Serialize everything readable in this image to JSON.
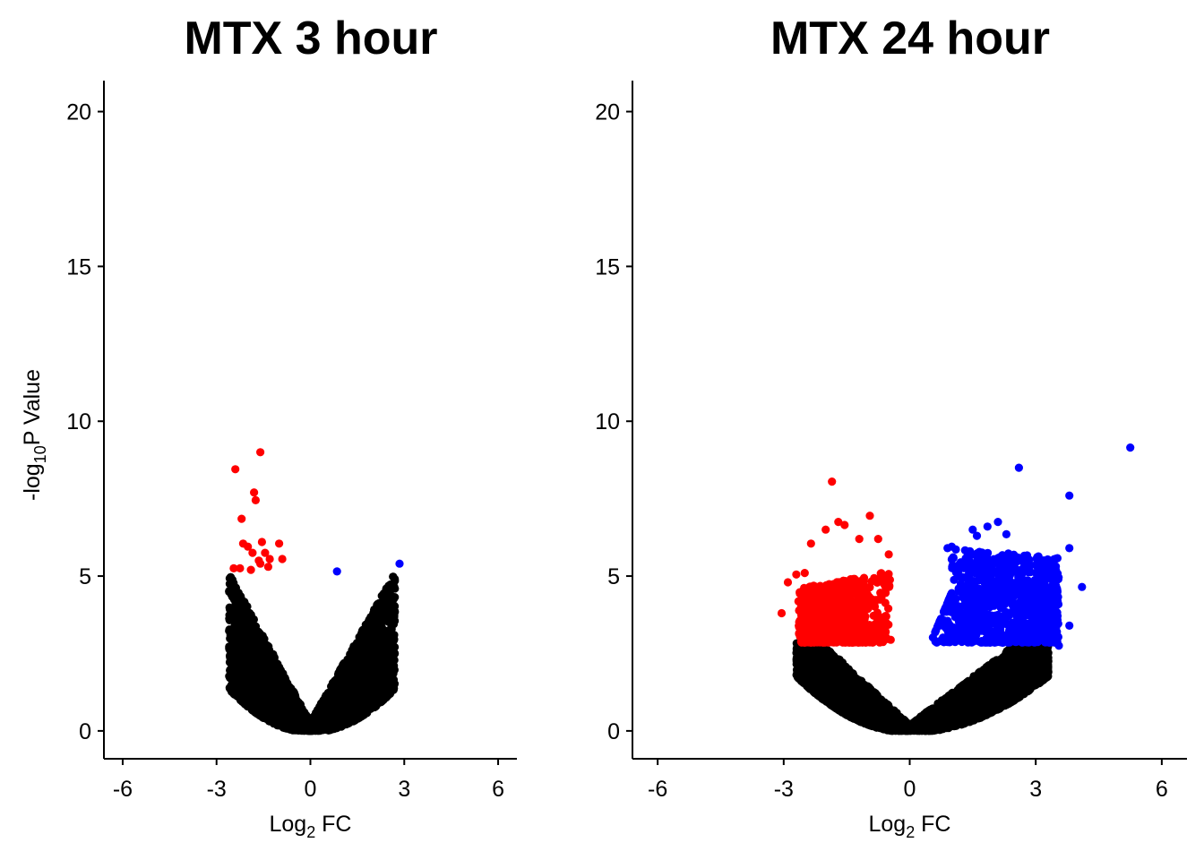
{
  "chart_data": [
    {
      "type": "scatter",
      "title": "MTX 3 hour",
      "xlabel": "Log2 FC",
      "xlabel_main": "Log",
      "xlabel_sub": "2",
      "xlabel_tail": " FC",
      "ylabel": "-log10P Value",
      "ylabel_head": "-log",
      "ylabel_sub": "10",
      "ylabel_tail": "P Value",
      "xlim": [
        -6.6,
        6.6
      ],
      "ylim": [
        -0.9,
        21
      ],
      "xticks": [
        -6,
        -3,
        0,
        3,
        6
      ],
      "yticks": [
        0,
        5,
        10,
        15,
        20
      ],
      "grid": false,
      "legend": "none",
      "colors": {
        "down": "#ff0000",
        "up": "#0000ff",
        "ns": "#000000"
      },
      "cloud": {
        "ns_threshold": 5.0,
        "min_x": -2.6,
        "max_x": 2.7,
        "n": 3200
      },
      "series": [
        {
          "group": "down",
          "points": [
            [
              -1.6,
              9.0
            ],
            [
              -2.4,
              8.45
            ],
            [
              -1.8,
              7.7
            ],
            [
              -1.75,
              7.45
            ],
            [
              -2.2,
              6.85
            ],
            [
              -2.15,
              6.05
            ],
            [
              -1.55,
              6.1
            ],
            [
              -1.0,
              6.05
            ],
            [
              -2.0,
              5.95
            ],
            [
              -1.85,
              5.75
            ],
            [
              -1.45,
              5.75
            ],
            [
              -1.65,
              5.5
            ],
            [
              -1.3,
              5.55
            ],
            [
              -0.9,
              5.55
            ],
            [
              -2.45,
              5.25
            ],
            [
              -2.25,
              5.25
            ],
            [
              -1.9,
              5.2
            ],
            [
              -1.6,
              5.4
            ],
            [
              -1.35,
              5.3
            ]
          ]
        },
        {
          "group": "up",
          "points": [
            [
              2.85,
              5.4
            ],
            [
              0.85,
              5.15
            ]
          ]
        }
      ]
    },
    {
      "type": "scatter",
      "title": "MTX 24 hour",
      "xlabel": "Log2 FC",
      "xlabel_main": "Log",
      "xlabel_sub": "2",
      "xlabel_tail": " FC",
      "ylabel": "",
      "xlim": [
        -6.6,
        6.6
      ],
      "ylim": [
        -0.9,
        21
      ],
      "xticks": [
        -6,
        -3,
        0,
        3,
        6
      ],
      "yticks": [
        0,
        5,
        10,
        15,
        20
      ],
      "grid": false,
      "legend": "none",
      "colors": {
        "down": "#ff0000",
        "up": "#0000ff",
        "ns": "#000000"
      },
      "cloud": {
        "ns_threshold": 2.85,
        "min_x": -2.7,
        "max_x": 3.3,
        "n": 5000
      },
      "series": [
        {
          "group": "down",
          "points": [
            [
              -1.85,
              8.05
            ],
            [
              -0.95,
              6.95
            ],
            [
              -1.7,
              6.75
            ],
            [
              -1.55,
              6.65
            ],
            [
              -2.0,
              6.5
            ],
            [
              -0.75,
              6.2
            ],
            [
              -2.35,
              6.05
            ],
            [
              -1.2,
              6.2
            ],
            [
              -0.5,
              5.7
            ],
            [
              -2.7,
              5.05
            ],
            [
              -2.5,
              5.1
            ],
            [
              -3.05,
              3.8
            ],
            [
              -2.9,
              4.8
            ]
          ]
        },
        {
          "group": "up",
          "points": [
            [
              5.25,
              9.15
            ],
            [
              2.6,
              8.5
            ],
            [
              3.8,
              7.6
            ],
            [
              2.1,
              6.75
            ],
            [
              1.85,
              6.6
            ],
            [
              1.5,
              6.5
            ],
            [
              1.6,
              6.3
            ],
            [
              2.3,
              6.35
            ],
            [
              1.0,
              5.95
            ],
            [
              0.9,
              5.9
            ],
            [
              3.8,
              5.9
            ],
            [
              4.1,
              4.65
            ],
            [
              3.8,
              3.4
            ],
            [
              3.55,
              2.75
            ]
          ]
        }
      ]
    }
  ]
}
